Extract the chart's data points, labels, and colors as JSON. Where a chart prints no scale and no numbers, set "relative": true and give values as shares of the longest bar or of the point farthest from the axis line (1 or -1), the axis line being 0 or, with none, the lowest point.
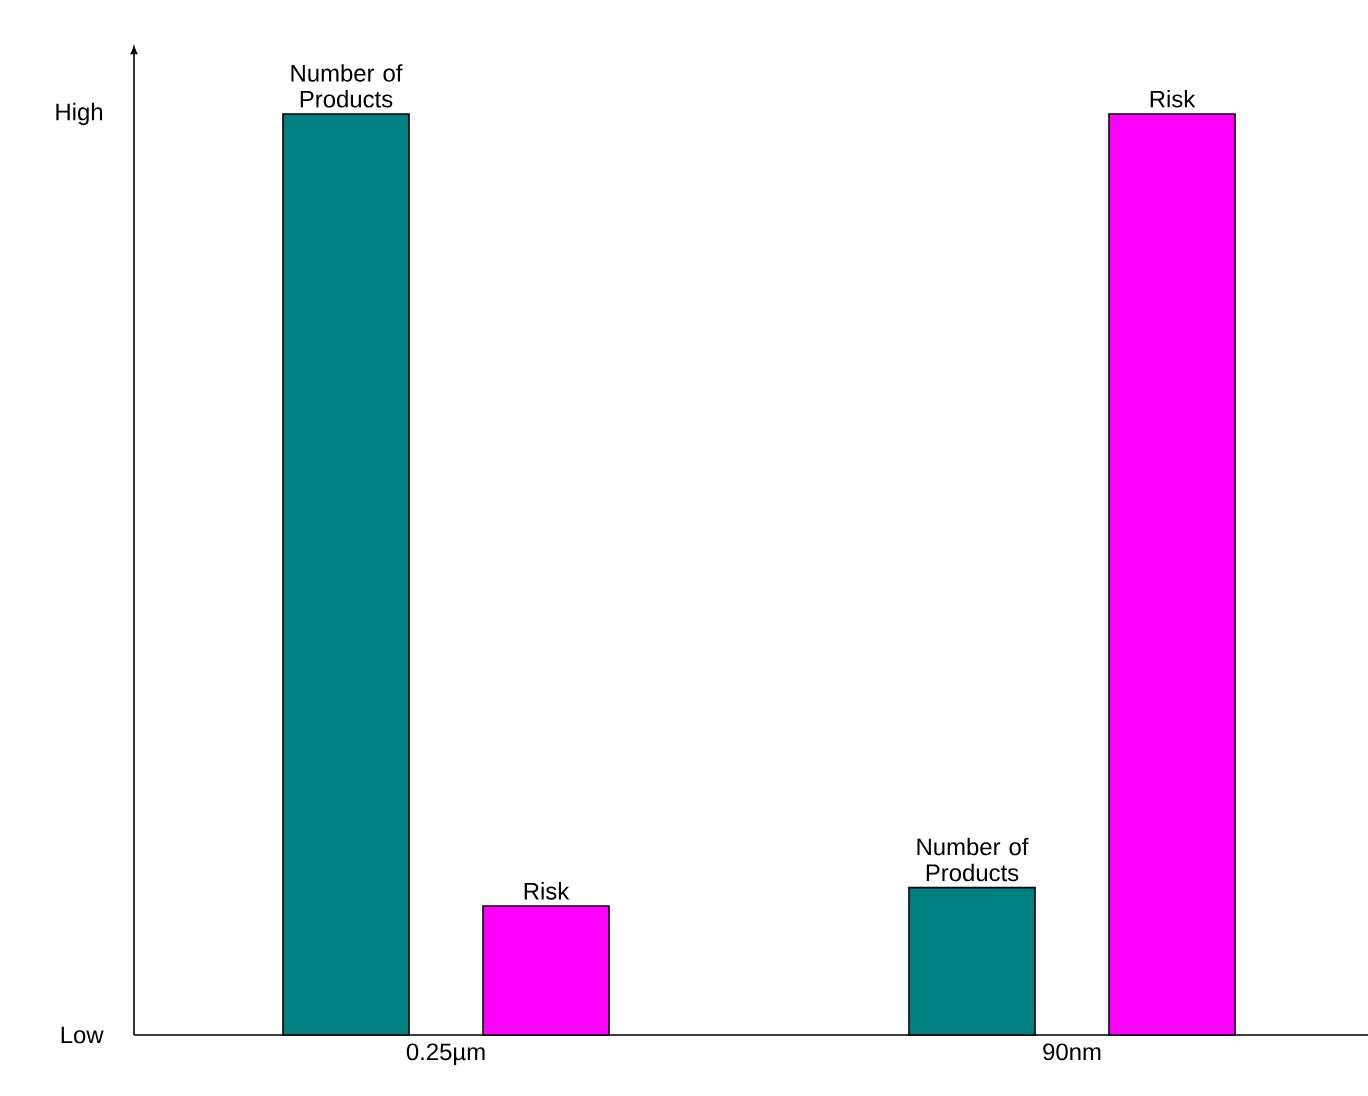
{
  "chart_data": {
    "type": "bar",
    "relative": true,
    "categories": [
      "0.25µm",
      "90nm"
    ],
    "series": [
      {
        "name": "Number of Products",
        "color": "#008080",
        "values": [
          1,
          0.16
        ]
      },
      {
        "name": "Risk",
        "color": "#ff00ff",
        "values": [
          0.14,
          1
        ]
      }
    ],
    "annotations": [
      "High",
      "Low"
    ]
  }
}
